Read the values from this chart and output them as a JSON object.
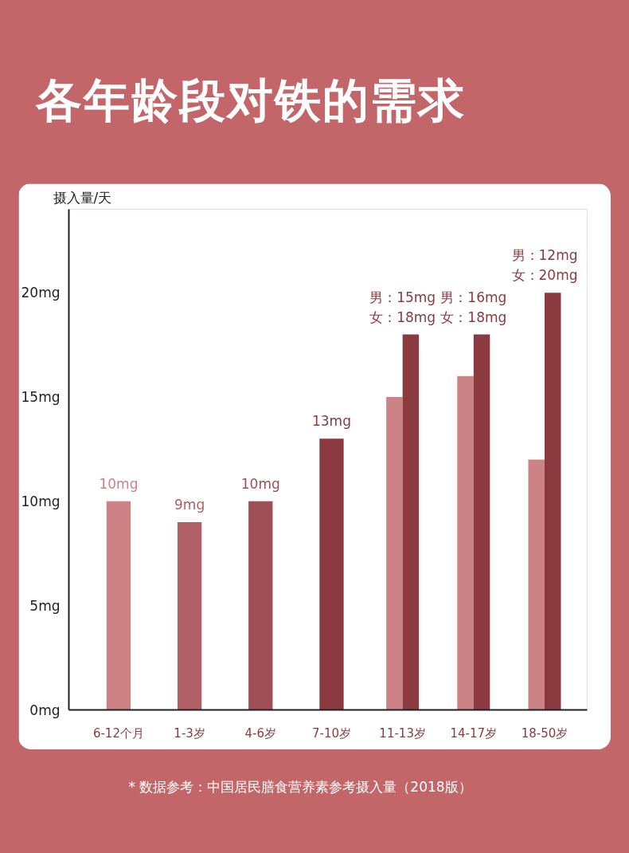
{
  "chart_data": {
    "type": "bar",
    "title": "各年龄段对铁的需求",
    "ylabel": "摄入量/天",
    "categories": [
      "6-12个月",
      "1-3岁",
      "4-6岁",
      "7-10岁",
      "11-13岁",
      "14-17岁",
      "18-50岁"
    ],
    "series": [
      {
        "color": "#cd8285",
        "colors": [
          "#cd8285",
          "#b06065",
          "#9e4f55",
          "#8b3a40",
          "#cd8285",
          "#cd8285",
          "#cd8285"
        ],
        "values": [
          10,
          9,
          10,
          13,
          15,
          16,
          12
        ],
        "value_labels": [
          "10mg",
          "9mg",
          "10mg",
          "13mg",
          null,
          null,
          null
        ]
      },
      {
        "color": "#8b3a40",
        "values": [
          null,
          null,
          null,
          null,
          18,
          18,
          20
        ],
        "value_labels": [
          null,
          null,
          null,
          null,
          "女：18mg",
          "女：18mg",
          "女：20mg"
        ]
      }
    ],
    "ylim": [
      0,
      24
    ],
    "yticks": [
      {
        "value": 0,
        "label": "0mg"
      },
      {
        "value": 5,
        "label": "5mg"
      },
      {
        "value": 10,
        "label": "10mg"
      },
      {
        "value": 15,
        "label": "15mg"
      },
      {
        "value": 20,
        "label": "20mg"
      }
    ],
    "grid": false,
    "annotations": [
      "男：15mg",
      "男：16mg",
      "男：12mg",
      "* 数据参考：中国居民膳食营养素参考摄入量（2018版）"
    ]
  }
}
